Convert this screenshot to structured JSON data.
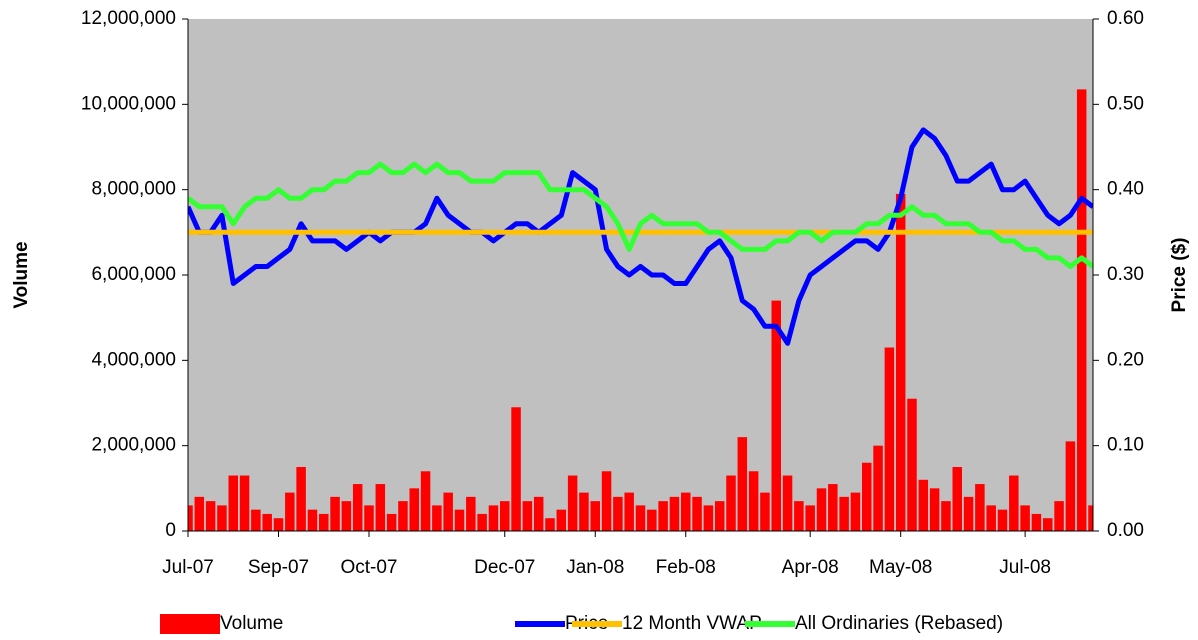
{
  "chart_data": {
    "type": "bar_line_combo",
    "categories": [
      "Jul-07",
      null,
      null,
      null,
      null,
      null,
      null,
      null,
      "Sep-07",
      null,
      null,
      null,
      null,
      null,
      null,
      null,
      "Oct-07",
      null,
      null,
      null,
      null,
      null,
      null,
      null,
      null,
      null,
      null,
      null,
      "Dec-07",
      null,
      null,
      null,
      null,
      null,
      null,
      null,
      "Jan-08",
      null,
      null,
      null,
      null,
      null,
      null,
      null,
      "Feb-08",
      null,
      null,
      null,
      null,
      null,
      null,
      null,
      null,
      null,
      null,
      "Apr-08",
      null,
      null,
      null,
      null,
      null,
      null,
      null,
      "May-08",
      null,
      null,
      null,
      null,
      null,
      null,
      null,
      null,
      null,
      null,
      "Jul-08",
      null,
      null,
      null,
      null,
      null,
      null
    ],
    "series": [
      {
        "name": "Volume",
        "color": "#ff0000",
        "axis": "y",
        "kind": "bar",
        "values": [
          600000,
          800000,
          700000,
          600000,
          1300000,
          1300000,
          500000,
          400000,
          300000,
          900000,
          1500000,
          500000,
          400000,
          800000,
          700000,
          1100000,
          600000,
          1100000,
          400000,
          700000,
          1000000,
          1400000,
          600000,
          900000,
          500000,
          800000,
          400000,
          600000,
          700000,
          2900000,
          700000,
          800000,
          300000,
          500000,
          1300000,
          900000,
          700000,
          1400000,
          800000,
          900000,
          600000,
          500000,
          700000,
          800000,
          900000,
          800000,
          600000,
          700000,
          1300000,
          2200000,
          1400000,
          900000,
          5400000,
          1300000,
          700000,
          600000,
          1000000,
          1100000,
          800000,
          900000,
          1600000,
          2000000,
          4300000,
          7900000,
          3100000,
          1200000,
          1000000,
          700000,
          1500000,
          800000,
          1100000,
          600000,
          500000,
          1300000,
          600000,
          400000,
          300000,
          700000,
          2100000,
          10350000,
          600000
        ]
      },
      {
        "name": "Price",
        "color": "#0000ff",
        "axis": "y2",
        "kind": "line",
        "values": [
          0.38,
          0.35,
          0.35,
          0.37,
          0.29,
          0.3,
          0.31,
          0.31,
          0.32,
          0.33,
          0.36,
          0.34,
          0.34,
          0.34,
          0.33,
          0.34,
          0.35,
          0.34,
          0.35,
          0.35,
          0.35,
          0.36,
          0.39,
          0.37,
          0.36,
          0.35,
          0.35,
          0.34,
          0.35,
          0.36,
          0.36,
          0.35,
          0.36,
          0.37,
          0.42,
          0.41,
          0.4,
          0.33,
          0.31,
          0.3,
          0.31,
          0.3,
          0.3,
          0.29,
          0.29,
          0.31,
          0.33,
          0.34,
          0.32,
          0.27,
          0.26,
          0.24,
          0.24,
          0.22,
          0.27,
          0.3,
          0.31,
          0.32,
          0.33,
          0.34,
          0.34,
          0.33,
          0.35,
          0.39,
          0.45,
          0.47,
          0.46,
          0.44,
          0.41,
          0.41,
          0.42,
          0.43,
          0.4,
          0.4,
          0.41,
          0.39,
          0.37,
          0.36,
          0.37,
          0.39,
          0.38
        ]
      },
      {
        "name": "12 Month VWAP",
        "color": "#ffc000",
        "axis": "y2",
        "kind": "line",
        "values": [
          0.35,
          0.35,
          0.35,
          0.35,
          0.35,
          0.35,
          0.35,
          0.35,
          0.35,
          0.35,
          0.35,
          0.35,
          0.35,
          0.35,
          0.35,
          0.35,
          0.35,
          0.35,
          0.35,
          0.35,
          0.35,
          0.35,
          0.35,
          0.35,
          0.35,
          0.35,
          0.35,
          0.35,
          0.35,
          0.35,
          0.35,
          0.35,
          0.35,
          0.35,
          0.35,
          0.35,
          0.35,
          0.35,
          0.35,
          0.35,
          0.35,
          0.35,
          0.35,
          0.35,
          0.35,
          0.35,
          0.35,
          0.35,
          0.35,
          0.35,
          0.35,
          0.35,
          0.35,
          0.35,
          0.35,
          0.35,
          0.35,
          0.35,
          0.35,
          0.35,
          0.35,
          0.35,
          0.35,
          0.35,
          0.35,
          0.35,
          0.35,
          0.35,
          0.35,
          0.35,
          0.35,
          0.35,
          0.35,
          0.35,
          0.35,
          0.35,
          0.35,
          0.35,
          0.35,
          0.35,
          0.35
        ]
      },
      {
        "name": "All Ordinaries (Rebased)",
        "color": "#33ff33",
        "axis": "y2",
        "kind": "line",
        "values": [
          0.39,
          0.38,
          0.38,
          0.38,
          0.36,
          0.38,
          0.39,
          0.39,
          0.4,
          0.39,
          0.39,
          0.4,
          0.4,
          0.41,
          0.41,
          0.42,
          0.42,
          0.43,
          0.42,
          0.42,
          0.43,
          0.42,
          0.43,
          0.42,
          0.42,
          0.41,
          0.41,
          0.41,
          0.42,
          0.42,
          0.42,
          0.42,
          0.4,
          0.4,
          0.4,
          0.4,
          0.39,
          0.38,
          0.36,
          0.33,
          0.36,
          0.37,
          0.36,
          0.36,
          0.36,
          0.36,
          0.35,
          0.35,
          0.34,
          0.33,
          0.33,
          0.33,
          0.34,
          0.34,
          0.35,
          0.35,
          0.34,
          0.35,
          0.35,
          0.35,
          0.36,
          0.36,
          0.37,
          0.37,
          0.38,
          0.37,
          0.37,
          0.36,
          0.36,
          0.36,
          0.35,
          0.35,
          0.34,
          0.34,
          0.33,
          0.33,
          0.32,
          0.32,
          0.31,
          0.32,
          0.31
        ]
      }
    ],
    "y_label": "Volume",
    "y2_label": "Price ($)",
    "ylim": [
      0,
      12000000
    ],
    "yticks": [
      0,
      {
        "value": 2000000,
        "label": "2,000,000"
      },
      {
        "value": 4000000,
        "label": "4,000,000"
      },
      {
        "value": 6000000,
        "label": "6,000,000"
      },
      {
        "value": 8000000,
        "label": "8,000,000"
      },
      {
        "value": 10000000,
        "label": "10,000,000"
      },
      {
        "value": 12000000,
        "label": "12,000,000"
      }
    ],
    "y2lim": [
      0,
      0.6
    ],
    "y2ticks": [
      {
        "value": 0,
        "label": "0.00"
      },
      {
        "value": 0.1,
        "label": "0.10"
      },
      {
        "value": 0.2,
        "label": "0.20"
      },
      {
        "value": 0.3,
        "label": "0.30"
      },
      {
        "value": 0.4,
        "label": "0.40"
      },
      {
        "value": 0.5,
        "label": "0.50"
      },
      {
        "value": 0.6,
        "label": "0.60"
      }
    ],
    "legend": "bottom",
    "plot_background": "#c0c0c0"
  }
}
